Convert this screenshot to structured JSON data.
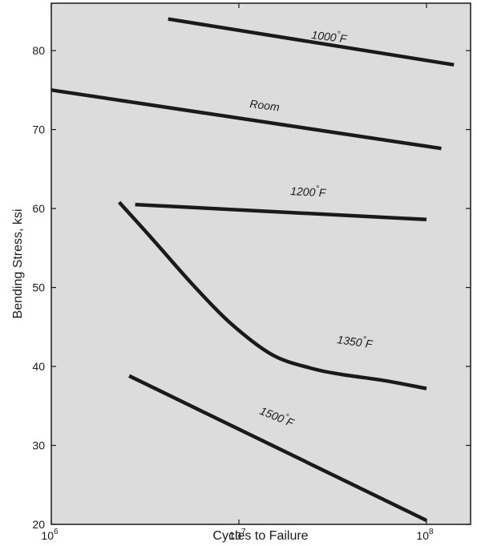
{
  "chart_data": {
    "type": "line",
    "title": "",
    "xlabel": "Cycles to Failure",
    "ylabel": "Bending Stress, ksi",
    "x_scale": "log",
    "xlim": [
      1000000,
      150000000
    ],
    "ylim": [
      20,
      86
    ],
    "grid": false,
    "x_ticks": [
      {
        "value": 1000000,
        "base": "10",
        "exp": "6"
      },
      {
        "value": 10000000,
        "base": "10",
        "exp": "7"
      },
      {
        "value": 100000000,
        "base": "10",
        "exp": "8"
      }
    ],
    "y_ticks": [
      20,
      30,
      40,
      50,
      60,
      70,
      80
    ],
    "colors": {
      "plot_background": "#dcdcdc",
      "line": "#1a1a1a",
      "frame": "#1a1a1a"
    },
    "series": [
      {
        "name": "1000°F",
        "points": [
          [
            4200000,
            84.0
          ],
          [
            140000000,
            78.2
          ]
        ]
      },
      {
        "name": "Room",
        "points": [
          [
            1000000,
            75.0
          ],
          [
            120000000,
            67.6
          ]
        ]
      },
      {
        "name": "1200°F",
        "points": [
          [
            2800000,
            60.5
          ],
          [
            100000000,
            58.6
          ]
        ]
      },
      {
        "name": "1350°F",
        "points": [
          [
            2300000,
            60.8
          ],
          [
            3500000,
            56.0
          ],
          [
            5600000,
            50.5
          ],
          [
            9000000,
            45.5
          ],
          [
            15000000,
            41.5
          ],
          [
            24000000,
            39.8
          ],
          [
            35000000,
            39.0
          ],
          [
            60000000,
            38.2
          ],
          [
            100000000,
            37.2
          ]
        ]
      },
      {
        "name": "1500°F",
        "points": [
          [
            2600000,
            38.8
          ],
          [
            100000000,
            20.5
          ]
        ]
      }
    ]
  }
}
